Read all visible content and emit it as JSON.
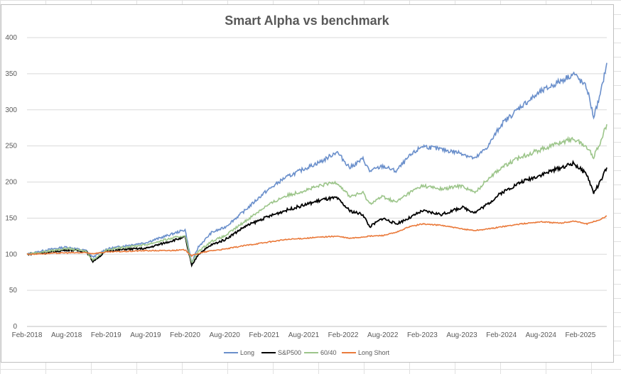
{
  "chart_data": {
    "type": "line",
    "title": "Smart Alpha vs benchmark",
    "xlabel": "",
    "ylabel": "",
    "ylim": [
      0,
      400
    ],
    "yticks": [
      "0",
      "50",
      "100",
      "150",
      "200",
      "250",
      "300",
      "350",
      "400"
    ],
    "xlim": [
      "2018-02",
      "2025-06"
    ],
    "xticks": [
      "Feb-2018",
      "Aug-2018",
      "Feb-2019",
      "Aug-2019",
      "Feb-2020",
      "Aug-2020",
      "Feb-2021",
      "Aug-2021",
      "Feb-2022",
      "Aug-2022",
      "Feb-2023",
      "Aug-2023",
      "Feb-2024",
      "Aug-2024",
      "Feb-2025"
    ],
    "grid": "horizontal",
    "legend_position": "bottom",
    "x": [
      "2018-02",
      "2018-05",
      "2018-08",
      "2018-11",
      "2018-12",
      "2019-02",
      "2019-05",
      "2019-08",
      "2019-11",
      "2020-02",
      "2020-03",
      "2020-04",
      "2020-06",
      "2020-08",
      "2020-11",
      "2021-02",
      "2021-05",
      "2021-08",
      "2021-11",
      "2022-01",
      "2022-03",
      "2022-05",
      "2022-06",
      "2022-08",
      "2022-10",
      "2022-12",
      "2023-02",
      "2023-05",
      "2023-08",
      "2023-10",
      "2023-12",
      "2024-02",
      "2024-05",
      "2024-08",
      "2024-11",
      "2025-01",
      "2025-03",
      "2025-04",
      "2025-05",
      "2025-06"
    ],
    "series": [
      {
        "name": "Long",
        "color": "#6a8fcb",
        "values": [
          100,
          106,
          110,
          105,
          96,
          107,
          112,
          116,
          125,
          134,
          88,
          110,
          130,
          137,
          160,
          185,
          205,
          218,
          230,
          242,
          220,
          232,
          215,
          222,
          215,
          235,
          250,
          245,
          240,
          232,
          250,
          280,
          305,
          325,
          340,
          350,
          330,
          290,
          320,
          365
        ]
      },
      {
        "name": "S&P500",
        "color": "#000000",
        "values": [
          100,
          102,
          106,
          104,
          90,
          104,
          107,
          108,
          116,
          124,
          84,
          100,
          113,
          120,
          138,
          150,
          160,
          168,
          176,
          178,
          160,
          155,
          138,
          150,
          142,
          150,
          160,
          155,
          165,
          158,
          170,
          185,
          200,
          210,
          220,
          226,
          210,
          185,
          200,
          220
        ]
      },
      {
        "name": "60/40",
        "color": "#9cc58a",
        "values": [
          100,
          104,
          108,
          104,
          92,
          106,
          110,
          113,
          120,
          126,
          88,
          104,
          118,
          125,
          145,
          165,
          180,
          188,
          196,
          200,
          180,
          185,
          170,
          180,
          172,
          185,
          195,
          190,
          195,
          185,
          205,
          220,
          235,
          245,
          255,
          260,
          248,
          235,
          255,
          280
        ]
      },
      {
        "name": "Long Short",
        "color": "#ea7a3b",
        "values": [
          100,
          101,
          102,
          102,
          101,
          103,
          104,
          105,
          105,
          106,
          98,
          101,
          105,
          107,
          112,
          116,
          120,
          122,
          124,
          125,
          122,
          124,
          125,
          126,
          130,
          138,
          142,
          140,
          135,
          133,
          135,
          138,
          142,
          145,
          143,
          146,
          142,
          145,
          148,
          153
        ]
      }
    ]
  }
}
